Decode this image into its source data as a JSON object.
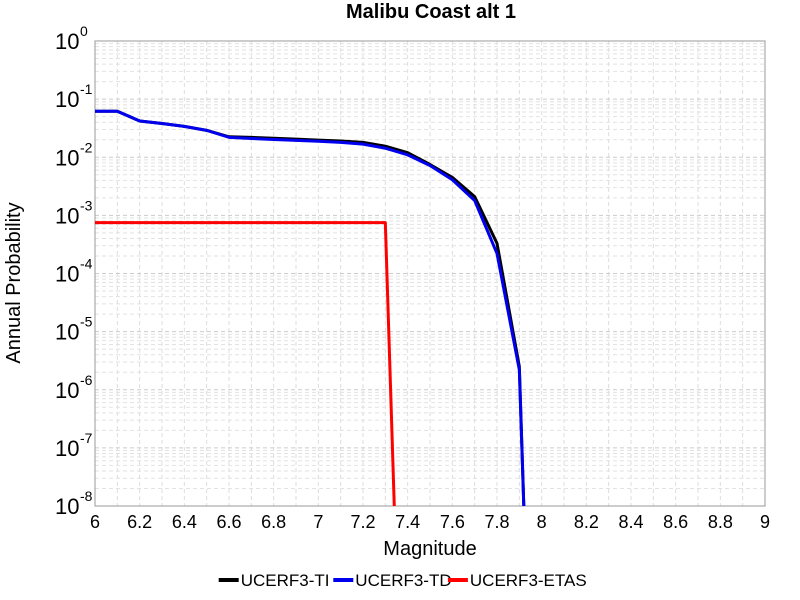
{
  "chart_data": {
    "type": "line",
    "title": "Malibu Coast alt 1",
    "xlabel": "Magnitude",
    "ylabel": "Annual Probability",
    "xlim": [
      6,
      9
    ],
    "ylim": [
      1e-08,
      1
    ],
    "yscale": "log",
    "grid": true,
    "legend_position": "bottom",
    "xticks": [
      "6",
      "6.2",
      "6.4",
      "6.6",
      "6.8",
      "7",
      "7.2",
      "7.4",
      "7.6",
      "7.8",
      "8",
      "8.2",
      "8.4",
      "8.6",
      "8.8",
      "9"
    ],
    "yticks": [
      {
        "base": "10",
        "exp": "0"
      },
      {
        "base": "10",
        "exp": "-1"
      },
      {
        "base": "10",
        "exp": "-2"
      },
      {
        "base": "10",
        "exp": "-3"
      },
      {
        "base": "10",
        "exp": "-4"
      },
      {
        "base": "10",
        "exp": "-5"
      },
      {
        "base": "10",
        "exp": "-6"
      },
      {
        "base": "10",
        "exp": "-7"
      },
      {
        "base": "10",
        "exp": "-8"
      }
    ],
    "series": [
      {
        "name": "UCERF3-TI",
        "color": "#000000",
        "x": [
          6.0,
          6.1,
          6.2,
          6.3,
          6.4,
          6.5,
          6.6,
          6.7,
          6.8,
          6.9,
          7.0,
          7.1,
          7.2,
          7.3,
          7.4,
          7.5,
          7.6,
          7.7,
          7.8,
          7.9,
          7.92
        ],
        "y": [
          0.062,
          0.062,
          0.042,
          0.038,
          0.034,
          0.029,
          0.0225,
          0.022,
          0.0212,
          0.0205,
          0.0197,
          0.019,
          0.018,
          0.0155,
          0.012,
          0.0075,
          0.0045,
          0.0021,
          0.00033,
          2.5e-06,
          1e-08
        ]
      },
      {
        "name": "UCERF3-TD",
        "color": "#0000ee",
        "x": [
          6.0,
          6.1,
          6.2,
          6.3,
          6.4,
          6.5,
          6.6,
          6.7,
          6.8,
          6.9,
          7.0,
          7.1,
          7.2,
          7.3,
          7.4,
          7.5,
          7.6,
          7.7,
          7.8,
          7.9,
          7.92
        ],
        "y": [
          0.062,
          0.062,
          0.042,
          0.038,
          0.034,
          0.029,
          0.022,
          0.021,
          0.0202,
          0.0195,
          0.0188,
          0.018,
          0.0168,
          0.0143,
          0.011,
          0.0072,
          0.0041,
          0.0018,
          0.00022,
          2.2e-06,
          1e-08
        ]
      },
      {
        "name": "UCERF3-ETAS",
        "color": "#ff0000",
        "x": [
          6.0,
          7.3,
          7.34
        ],
        "y": [
          0.00075,
          0.00075,
          1e-08
        ]
      }
    ]
  }
}
